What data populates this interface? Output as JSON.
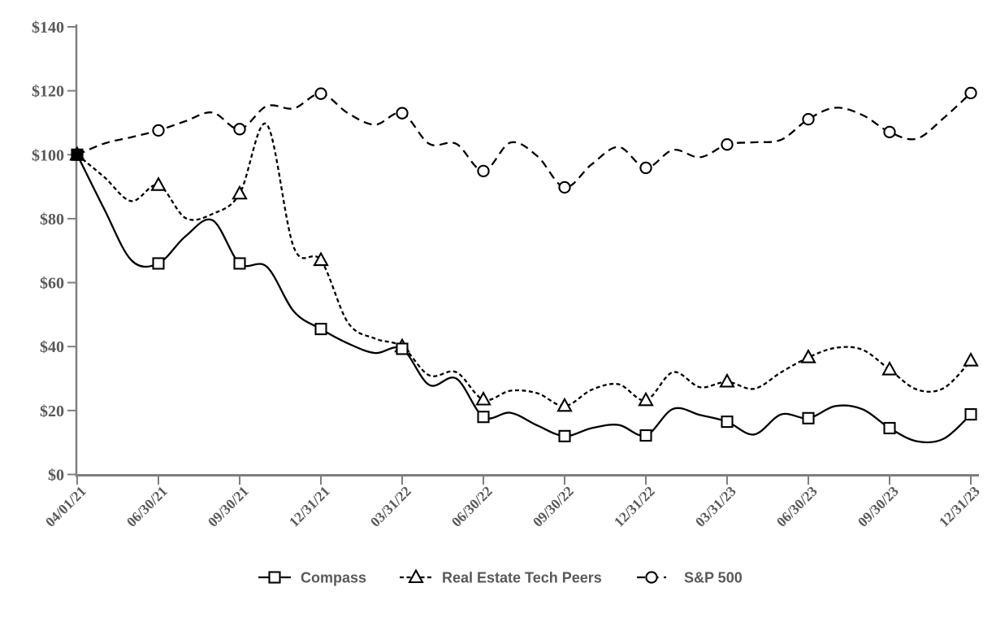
{
  "chart_data": {
    "type": "line",
    "description": "Indexed total return comparison, $100 invested 04/01/21",
    "x": [
      "04/01/21",
      "04/30/21",
      "05/31/21",
      "06/30/21",
      "07/31/21",
      "08/31/21",
      "09/30/21",
      "10/31/21",
      "11/30/21",
      "12/31/21",
      "01/31/22",
      "02/28/22",
      "03/31/22",
      "04/30/22",
      "05/31/22",
      "06/30/22",
      "07/31/22",
      "08/31/22",
      "09/30/22",
      "10/31/22",
      "11/30/22",
      "12/31/22",
      "01/31/23",
      "02/28/23",
      "03/31/23",
      "04/30/23",
      "05/31/23",
      "06/30/23",
      "07/31/23",
      "08/31/23",
      "09/30/23",
      "10/31/23",
      "11/30/23",
      "12/31/23"
    ],
    "x_tick_labels": [
      "04/01/21",
      "06/30/21",
      "09/30/21",
      "12/31/21",
      "03/31/22",
      "06/30/22",
      "09/30/22",
      "12/31/22",
      "03/31/23",
      "06/30/23",
      "09/30/23",
      "12/31/23"
    ],
    "y_tick_labels": [
      "$0",
      "$20",
      "$40",
      "$60",
      "$80",
      "$100",
      "$120",
      "$140"
    ],
    "ylim": [
      0,
      140
    ],
    "grid": false,
    "marker_every": 3,
    "legend_position": "bottom-center",
    "series": [
      {
        "name": "Compass",
        "marker": "square",
        "line_style": "solid",
        "values": [
          100,
          83,
          67,
          66,
          74.5,
          79.5,
          66,
          65,
          51,
          45.5,
          41,
          38,
          39.3,
          28,
          30,
          18,
          19.3,
          15.3,
          12,
          14.5,
          15.5,
          12.2,
          20.5,
          18.6,
          16.5,
          12.5,
          18.8,
          17.6,
          21.4,
          20.4,
          14.5,
          10.4,
          11.2,
          18.8
        ]
      },
      {
        "name": "Real Estate Tech Peers",
        "marker": "triangle",
        "line_style": "short-dash",
        "values": [
          100,
          93,
          85.5,
          90.5,
          80.2,
          81.5,
          87.8,
          109.5,
          71,
          67,
          47.5,
          42.5,
          40,
          31,
          32,
          23.4,
          26.2,
          25.4,
          21.4,
          26.5,
          28.2,
          23.2,
          32,
          27.3,
          29,
          26.8,
          32,
          36.6,
          39.6,
          39,
          32.8,
          26.6,
          27,
          35.6
        ]
      },
      {
        "name": "S&P 500",
        "marker": "circle",
        "line_style": "long-dash",
        "values": [
          100,
          103.5,
          105.5,
          107.6,
          110.5,
          113.2,
          108,
          115.2,
          114.5,
          119.1,
          113,
          109.4,
          113,
          103.4,
          103.4,
          94.9,
          103.8,
          99.5,
          89.8,
          97,
          102.4,
          95.9,
          101.5,
          99.2,
          103.2,
          103.9,
          104.7,
          111.1,
          114.7,
          112.4,
          107.1,
          105,
          111.5,
          119.3
        ]
      }
    ],
    "colors": {
      "series_line": "#000000",
      "axis": "#7f7f7f",
      "tick_label": "#595959",
      "legend_text": "#595959",
      "marker_fill": "#ffffff"
    }
  }
}
